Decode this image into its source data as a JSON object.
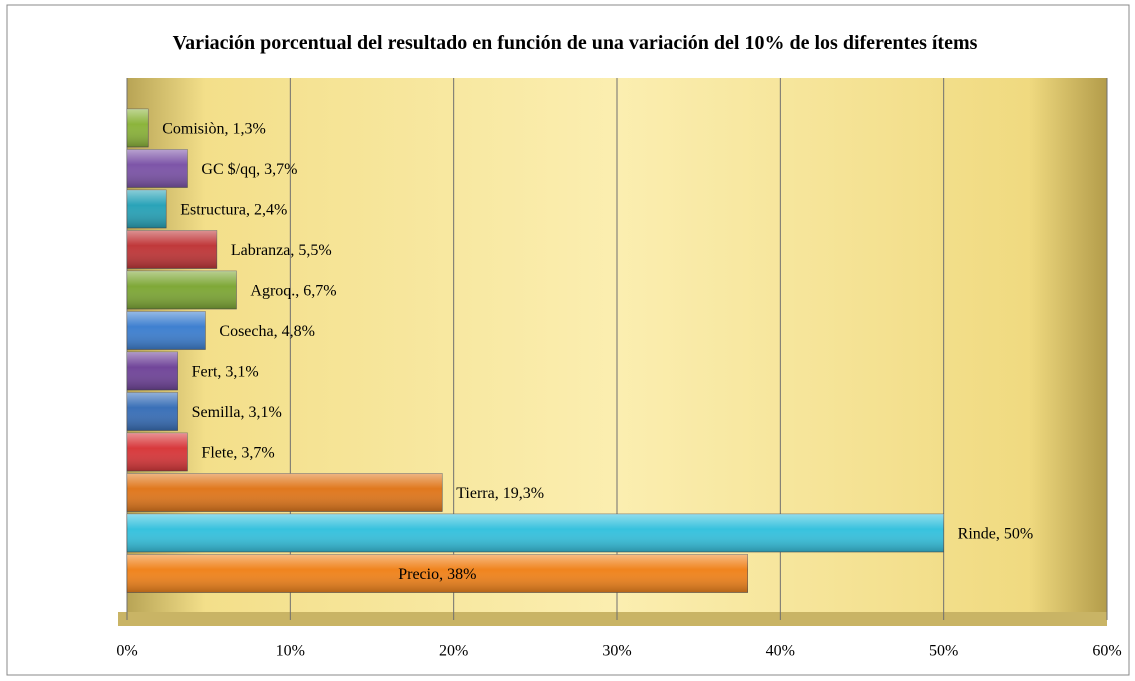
{
  "chart_data": {
    "type": "bar",
    "orientation": "horizontal",
    "title": "Variación porcentual del resultado en función de una variación del 10% de los diferentes ítems",
    "categories": [
      "Comisiòn",
      "GC $/qq",
      "Estructura",
      "Labranza",
      "Agroq.",
      "Cosecha",
      "Fert",
      "Semilla",
      "Flete",
      "Tierra",
      "Rinde",
      "Precio"
    ],
    "values": [
      1.3,
      3.7,
      2.4,
      5.5,
      6.7,
      4.8,
      3.1,
      3.1,
      3.7,
      19.3,
      50,
      38
    ],
    "value_labels": [
      "Comisiòn, 1,3%",
      "GC $/qq, 3,7%",
      "Estructura, 2,4%",
      "Labranza, 5,5%",
      "Agroq., 6,7%",
      "Cosecha, 4,8%",
      "Fert, 3,1%",
      "Semilla, 3,1%",
      "Flete, 3,7%",
      "Tierra, 19,3%",
      "Rinde, 50%",
      "Precio, 38%"
    ],
    "colors": [
      "#8cb43c",
      "#7d55a8",
      "#2aa3b8",
      "#c0383a",
      "#7fa838",
      "#3f80d0",
      "#71469a",
      "#3a70b8",
      "#d8393c",
      "#e0781e",
      "#38c2de",
      "#f0841e"
    ],
    "xlim": [
      0,
      60
    ],
    "xticks": [
      {
        "value": 0,
        "label": "0%"
      },
      {
        "value": 10,
        "label": "10%"
      },
      {
        "value": 20,
        "label": "20%"
      },
      {
        "value": 30,
        "label": "30%"
      },
      {
        "value": 40,
        "label": "40%"
      },
      {
        "value": 50,
        "label": "50%"
      },
      {
        "value": 60,
        "label": "60%"
      }
    ],
    "grid": true
  }
}
